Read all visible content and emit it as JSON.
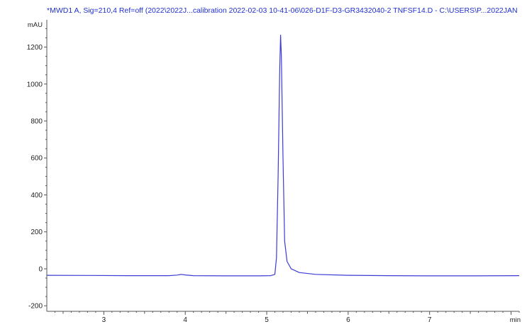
{
  "signal_title": "*MWD1 A, Sig=210,4 Ref=off (2022\\2022J...calibration 2022-02-03 10-41-06\\026-D1F-D3-GR3432040-2 TNFSF14.D - C:\\USERS\\P...2022JAN",
  "colors": {
    "trace": "#3b3bd6",
    "axis": "#555555",
    "title": "#1f2fd0"
  },
  "chart_data": {
    "type": "line",
    "title": "*MWD1 A, Sig=210,4 Ref=off (2022\\2022J...calibration 2022-02-03 10-41-06\\026-D1F-D3-GR3432040-2 TNFSF14.D - C:\\USERS\\P...2022JAN",
    "xlabel": "min",
    "ylabel": "mAU",
    "xlim": [
      2.3,
      8.1
    ],
    "ylim": [
      -230,
      1340
    ],
    "x_ticks": [
      3,
      4,
      5,
      6,
      7
    ],
    "y_ticks": [
      -200,
      0,
      200,
      400,
      600,
      800,
      1000,
      1200
    ],
    "grid": false,
    "series": [
      {
        "values": [
          [
            2.3,
            -35
          ],
          [
            2.8,
            -36
          ],
          [
            3.3,
            -37
          ],
          [
            3.8,
            -37
          ],
          [
            3.9,
            -34
          ],
          [
            3.95,
            -30
          ],
          [
            4.0,
            -33
          ],
          [
            4.1,
            -37
          ],
          [
            4.5,
            -38
          ],
          [
            4.9,
            -38
          ],
          [
            5.05,
            -37
          ],
          [
            5.1,
            -30
          ],
          [
            5.12,
            60
          ],
          [
            5.14,
            500
          ],
          [
            5.16,
            1090
          ],
          [
            5.17,
            1265
          ],
          [
            5.18,
            1150
          ],
          [
            5.2,
            600
          ],
          [
            5.22,
            150
          ],
          [
            5.25,
            40
          ],
          [
            5.3,
            0
          ],
          [
            5.4,
            -20
          ],
          [
            5.6,
            -30
          ],
          [
            6.0,
            -35
          ],
          [
            6.5,
            -37
          ],
          [
            7.0,
            -38
          ],
          [
            7.5,
            -38
          ],
          [
            8.1,
            -37
          ]
        ]
      }
    ]
  }
}
